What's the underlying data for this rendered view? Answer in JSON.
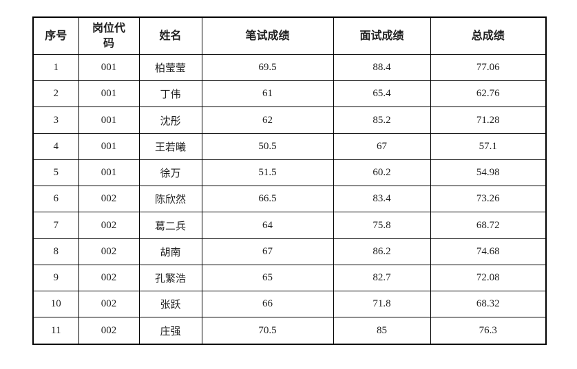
{
  "table": {
    "columns": [
      "序号",
      "岗位代码",
      "姓名",
      "笔试成绩",
      "面试成绩",
      "总成绩"
    ],
    "rows": [
      [
        "1",
        "001",
        "柏莹莹",
        "69.5",
        "88.4",
        "77.06"
      ],
      [
        "2",
        "001",
        "丁伟",
        "61",
        "65.4",
        "62.76"
      ],
      [
        "3",
        "001",
        "沈彤",
        "62",
        "85.2",
        "71.28"
      ],
      [
        "4",
        "001",
        "王若曦",
        "50.5",
        "67",
        "57.1"
      ],
      [
        "5",
        "001",
        "徐万",
        "51.5",
        "60.2",
        "54.98"
      ],
      [
        "6",
        "002",
        "陈欣然",
        "66.5",
        "83.4",
        "73.26"
      ],
      [
        "7",
        "002",
        "葛二兵",
        "64",
        "75.8",
        "68.72"
      ],
      [
        "8",
        "002",
        "胡南",
        "67",
        "86.2",
        "74.68"
      ],
      [
        "9",
        "002",
        "孔繁浩",
        "65",
        "82.7",
        "72.08"
      ],
      [
        "10",
        "002",
        "张跃",
        "66",
        "71.8",
        "68.32"
      ],
      [
        "11",
        "002",
        "庄强",
        "70.5",
        "85",
        "76.3"
      ]
    ],
    "colors": {
      "border": "#000000",
      "text": "#1f1f1f",
      "background": "#ffffff"
    }
  }
}
